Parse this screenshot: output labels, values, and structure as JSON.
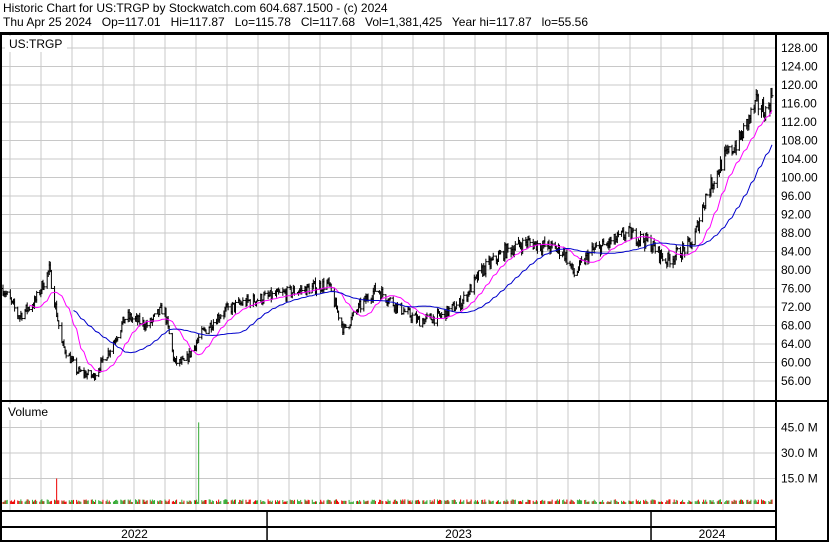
{
  "header": {
    "title": "Historic Chart for US:TRGP by Stockwatch.com 604.687.1500 - (c) 2024",
    "quote": "Thu Apr 25 2024   Op=117.01   Hi=117.87   Lo=115.78   Cl=117.68   Vol=1,381,425   Year hi=117.87   lo=55.56"
  },
  "chart_data": {
    "type": "ohlc",
    "symbol_label": "US:TRGP",
    "volume_label": "Volume",
    "price_ylim": [
      54,
      130
    ],
    "price_ticks": [
      "56.00",
      "60.00",
      "64.00",
      "68.00",
      "72.00",
      "76.00",
      "80.00",
      "84.00",
      "88.00",
      "92.00",
      "96.00",
      "100.00",
      "104.00",
      "108.00",
      "112.00",
      "116.00",
      "120.00",
      "124.00",
      "128.00"
    ],
    "volume_ticks": [
      "15.0 M",
      "30.0 M",
      "45.0 M"
    ],
    "x_range": [
      "2022-04-25",
      "2024-04-25"
    ],
    "year_labels": [
      {
        "label": "2022",
        "date": "2022-08-28"
      },
      {
        "label": "2023",
        "date": "2023-07-02"
      },
      {
        "label": "2024",
        "date": "2024-02-28"
      }
    ],
    "year_boundaries": [
      "2023-01-01",
      "2024-01-01"
    ],
    "grid": true,
    "colors": {
      "up_volume": "#33aa33",
      "down_volume": "#ee0000",
      "ma_short": "#ff00ff",
      "ma_long": "#0000cc",
      "bars": "#000000",
      "grid": "#c8c8c8"
    },
    "approx_closes": [
      [
        "2022-04-25",
        76
      ],
      [
        "2022-05-10",
        70
      ],
      [
        "2022-05-25",
        73
      ],
      [
        "2022-06-08",
        80
      ],
      [
        "2022-06-20",
        64
      ],
      [
        "2022-07-05",
        58
      ],
      [
        "2022-07-20",
        57
      ],
      [
        "2022-08-05",
        63
      ],
      [
        "2022-08-20",
        70
      ],
      [
        "2022-09-10",
        68
      ],
      [
        "2022-09-25",
        72
      ],
      [
        "2022-10-05",
        60
      ],
      [
        "2022-10-15",
        60
      ],
      [
        "2022-10-30",
        66
      ],
      [
        "2022-11-20",
        71
      ],
      [
        "2022-12-10",
        73
      ],
      [
        "2022-12-30",
        74
      ],
      [
        "2023-01-20",
        75
      ],
      [
        "2023-02-10",
        76
      ],
      [
        "2023-02-28",
        77
      ],
      [
        "2023-03-15",
        67
      ],
      [
        "2023-03-30",
        72
      ],
      [
        "2023-04-15",
        76
      ],
      [
        "2023-05-05",
        72
      ],
      [
        "2023-05-25",
        69
      ],
      [
        "2023-06-15",
        70
      ],
      [
        "2023-07-05",
        73
      ],
      [
        "2023-07-25",
        80
      ],
      [
        "2023-08-15",
        84
      ],
      [
        "2023-09-05",
        86
      ],
      [
        "2023-09-25",
        85
      ],
      [
        "2023-10-10",
        84
      ],
      [
        "2023-10-20",
        79
      ],
      [
        "2023-11-05",
        84
      ],
      [
        "2023-11-25",
        86
      ],
      [
        "2023-12-10",
        88
      ],
      [
        "2023-12-30",
        86
      ],
      [
        "2024-01-15",
        82
      ],
      [
        "2024-01-30",
        84
      ],
      [
        "2024-02-10",
        86
      ],
      [
        "2024-02-22",
        96
      ],
      [
        "2024-03-10",
        104
      ],
      [
        "2024-03-25",
        108
      ],
      [
        "2024-04-10",
        116
      ],
      [
        "2024-04-20",
        114
      ],
      [
        "2024-04-25",
        117.68
      ]
    ],
    "volume_spikes": [
      {
        "date": "2022-06-15",
        "value": 15
      },
      {
        "date": "2022-10-28",
        "value": 48
      }
    ]
  }
}
